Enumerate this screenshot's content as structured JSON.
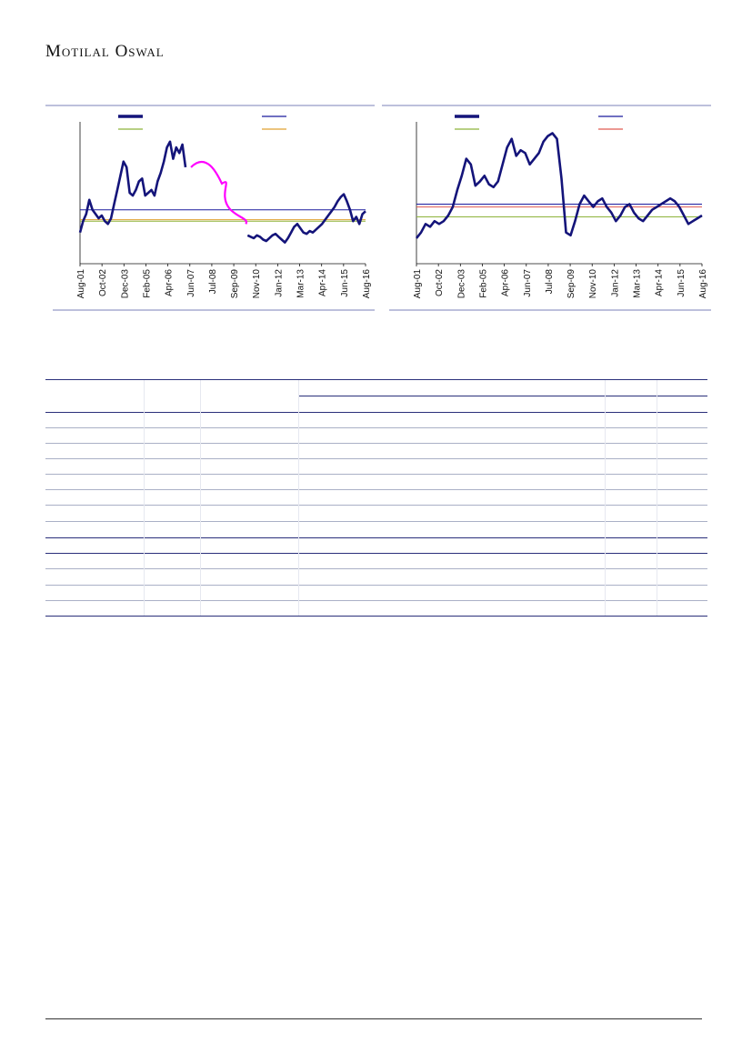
{
  "header": {
    "brand": "Motilal Oswal"
  },
  "chart_data": [
    {
      "type": "line",
      "title": "",
      "xlabel": "",
      "ylabel": "",
      "x_tick_labels": [
        "Aug-01",
        "Oct-02",
        "Dec-03",
        "Feb-05",
        "Apr-06",
        "Jun-07",
        "Jul-08",
        "Sep-09",
        "Nov-10",
        "Jan-12",
        "Mar-13",
        "Apr-14",
        "Jun-15",
        "Aug-16"
      ],
      "ylim": [
        0,
        100
      ],
      "series": [
        {
          "values": [
            [
              0,
              22
            ],
            [
              1,
              30
            ],
            [
              2,
              35
            ],
            [
              3,
              45
            ],
            [
              4,
              38
            ],
            [
              5,
              35
            ],
            [
              6,
              32
            ],
            [
              7,
              34
            ],
            [
              8,
              30
            ],
            [
              9,
              28
            ],
            [
              10,
              32
            ],
            [
              11,
              42
            ],
            [
              12,
              52
            ],
            [
              13,
              62
            ],
            [
              14,
              72
            ],
            [
              15,
              68
            ],
            [
              16,
              50
            ],
            [
              17,
              48
            ],
            [
              18,
              52
            ],
            [
              19,
              58
            ],
            [
              20,
              60
            ],
            [
              21,
              48
            ],
            [
              22,
              50
            ],
            [
              23,
              52
            ],
            [
              24,
              48
            ],
            [
              25,
              58
            ],
            [
              26,
              64
            ],
            [
              27,
              72
            ],
            [
              28,
              82
            ],
            [
              29,
              86
            ],
            [
              30,
              74
            ],
            [
              31,
              82
            ],
            [
              32,
              78
            ],
            [
              33,
              84
            ],
            [
              34,
              68
            ],
            [
              54,
              20
            ],
            [
              55,
              19
            ],
            [
              56,
              18
            ],
            [
              57,
              20
            ],
            [
              58,
              19
            ],
            [
              59,
              17
            ],
            [
              60,
              16
            ],
            [
              61,
              18
            ],
            [
              62,
              20
            ],
            [
              63,
              21
            ],
            [
              64,
              19
            ],
            [
              65,
              17
            ],
            [
              66,
              15
            ],
            [
              67,
              18
            ],
            [
              68,
              22
            ],
            [
              69,
              26
            ],
            [
              70,
              28
            ],
            [
              71,
              25
            ],
            [
              72,
              22
            ],
            [
              73,
              21
            ],
            [
              74,
              23
            ],
            [
              75,
              22
            ],
            [
              76,
              24
            ],
            [
              77,
              26
            ],
            [
              78,
              28
            ],
            [
              79,
              31
            ],
            [
              80,
              34
            ],
            [
              81,
              37
            ],
            [
              82,
              40
            ],
            [
              83,
              44
            ],
            [
              84,
              47
            ],
            [
              85,
              49
            ],
            [
              86,
              44
            ],
            [
              87,
              38
            ],
            [
              88,
              30
            ],
            [
              89,
              33
            ],
            [
              90,
              28
            ],
            [
              91,
              35
            ],
            [
              92,
              37
            ]
          ]
        }
      ],
      "reference_lines": [
        {
          "value": 38,
          "color": "#1a1a9e"
        },
        {
          "value": 31,
          "color": "#e0a030"
        },
        {
          "value": 30,
          "color": "#8db33a"
        }
      ],
      "annotation_color": "#ff00ff",
      "grid": false
    },
    {
      "type": "line",
      "title": "",
      "xlabel": "",
      "ylabel": "",
      "x_tick_labels": [
        "Aug-01",
        "Oct-02",
        "Dec-03",
        "Feb-05",
        "Apr-06",
        "Jun-07",
        "Jul-08",
        "Sep-09",
        "Nov-10",
        "Jan-12",
        "Mar-13",
        "Apr-14",
        "Jun-15",
        "Aug-16"
      ],
      "ylim": [
        0,
        100
      ],
      "series": [
        {
          "values": [
            [
              0,
              18
            ],
            [
              1,
              22
            ],
            [
              2,
              28
            ],
            [
              3,
              26
            ],
            [
              4,
              30
            ],
            [
              5,
              28
            ],
            [
              6,
              30
            ],
            [
              7,
              34
            ],
            [
              8,
              40
            ],
            [
              9,
              52
            ],
            [
              10,
              62
            ],
            [
              11,
              74
            ],
            [
              12,
              70
            ],
            [
              13,
              55
            ],
            [
              14,
              58
            ],
            [
              15,
              62
            ],
            [
              16,
              56
            ],
            [
              17,
              54
            ],
            [
              18,
              58
            ],
            [
              19,
              70
            ],
            [
              20,
              82
            ],
            [
              21,
              88
            ],
            [
              22,
              76
            ],
            [
              23,
              80
            ],
            [
              24,
              78
            ],
            [
              25,
              70
            ],
            [
              26,
              74
            ],
            [
              27,
              78
            ],
            [
              28,
              86
            ],
            [
              29,
              90
            ],
            [
              30,
              92
            ],
            [
              31,
              88
            ],
            [
              32,
              60
            ],
            [
              33,
              22
            ],
            [
              34,
              20
            ],
            [
              35,
              30
            ],
            [
              36,
              42
            ],
            [
              37,
              48
            ],
            [
              38,
              44
            ],
            [
              39,
              40
            ],
            [
              40,
              44
            ],
            [
              41,
              46
            ],
            [
              42,
              40
            ],
            [
              43,
              36
            ],
            [
              44,
              30
            ],
            [
              45,
              34
            ],
            [
              46,
              40
            ],
            [
              47,
              42
            ],
            [
              48,
              36
            ],
            [
              49,
              32
            ],
            [
              50,
              30
            ],
            [
              51,
              34
            ],
            [
              52,
              38
            ],
            [
              53,
              40
            ],
            [
              54,
              42
            ],
            [
              55,
              44
            ],
            [
              56,
              46
            ],
            [
              57,
              44
            ],
            [
              58,
              40
            ],
            [
              59,
              34
            ],
            [
              60,
              28
            ],
            [
              61,
              30
            ],
            [
              62,
              32
            ],
            [
              63,
              34
            ]
          ]
        }
      ],
      "reference_lines": [
        {
          "value": 42,
          "color": "#1a1a9e"
        },
        {
          "value": 40,
          "color": "#e05a50"
        },
        {
          "value": 33,
          "color": "#8db33a"
        }
      ],
      "grid": false
    }
  ],
  "table": {
    "row_count": 14
  }
}
